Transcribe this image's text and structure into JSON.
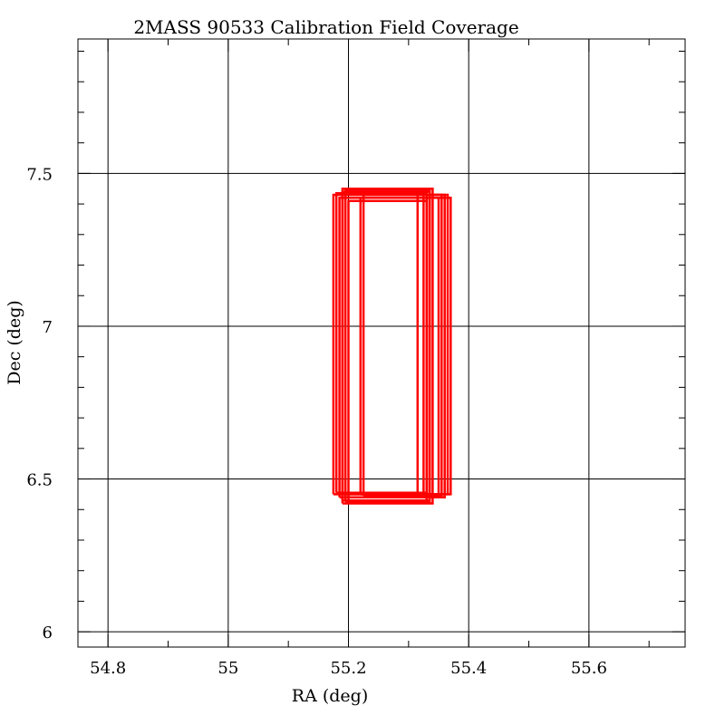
{
  "chart_data": {
    "type": "line",
    "title": "2MASS 90533 Calibration Field Coverage",
    "xlabel": "RA (deg)",
    "ylabel": "Dec (deg)",
    "xlim": [
      54.75,
      55.76
    ],
    "ylim": [
      5.95,
      7.94
    ],
    "x_ticks": [
      54.8,
      55,
      55.2,
      55.4,
      55.6
    ],
    "x_tick_labels": [
      "54.8",
      "55",
      "55.2",
      "55.4",
      "55.6"
    ],
    "y_ticks": [
      6,
      6.5,
      7,
      7.5
    ],
    "y_tick_labels": [
      "6",
      "6.5",
      "7",
      "7.5"
    ],
    "grid": true,
    "series_color": "#ff0000",
    "series": [
      {
        "x": [
          55.175,
          55.325,
          55.325,
          55.175,
          55.175
        ],
        "y": [
          6.45,
          6.45,
          7.43,
          7.43,
          6.45
        ]
      },
      {
        "x": [
          55.18,
          55.33,
          55.33,
          55.18,
          55.18
        ],
        "y": [
          6.455,
          6.455,
          7.435,
          7.435,
          6.455
        ]
      },
      {
        "x": [
          55.185,
          55.335,
          55.335,
          55.185,
          55.185
        ],
        "y": [
          6.44,
          6.44,
          7.42,
          7.42,
          6.44
        ]
      },
      {
        "x": [
          55.19,
          55.335,
          55.335,
          55.19,
          55.19
        ],
        "y": [
          6.43,
          6.43,
          7.44,
          7.44,
          6.43
        ]
      },
      {
        "x": [
          55.19,
          55.34,
          55.34,
          55.19,
          55.19
        ],
        "y": [
          6.42,
          6.42,
          7.45,
          7.45,
          6.42
        ]
      },
      {
        "x": [
          55.195,
          55.335,
          55.335,
          55.195,
          55.195
        ],
        "y": [
          6.425,
          6.425,
          7.445,
          7.445,
          6.425
        ]
      },
      {
        "x": [
          55.2,
          55.33,
          55.33,
          55.2,
          55.2
        ],
        "y": [
          6.43,
          6.43,
          7.41,
          7.41,
          6.43
        ]
      },
      {
        "x": [
          55.22,
          55.35,
          55.35,
          55.22,
          55.22
        ],
        "y": [
          6.45,
          6.45,
          7.42,
          7.42,
          6.45
        ]
      },
      {
        "x": [
          55.225,
          55.355,
          55.355,
          55.225,
          55.225
        ],
        "y": [
          6.445,
          6.445,
          7.43,
          7.43,
          6.445
        ]
      },
      {
        "x": [
          55.315,
          55.36,
          55.36,
          55.315,
          55.315
        ],
        "y": [
          6.44,
          6.44,
          7.43,
          7.43,
          6.44
        ]
      },
      {
        "x": [
          55.335,
          55.365,
          55.365,
          55.335,
          55.335
        ],
        "y": [
          6.45,
          6.45,
          7.43,
          7.43,
          6.45
        ]
      },
      {
        "x": [
          55.19,
          55.37,
          55.37,
          55.19,
          55.19
        ],
        "y": [
          6.45,
          6.45,
          7.42,
          7.42,
          6.45
        ]
      }
    ]
  }
}
